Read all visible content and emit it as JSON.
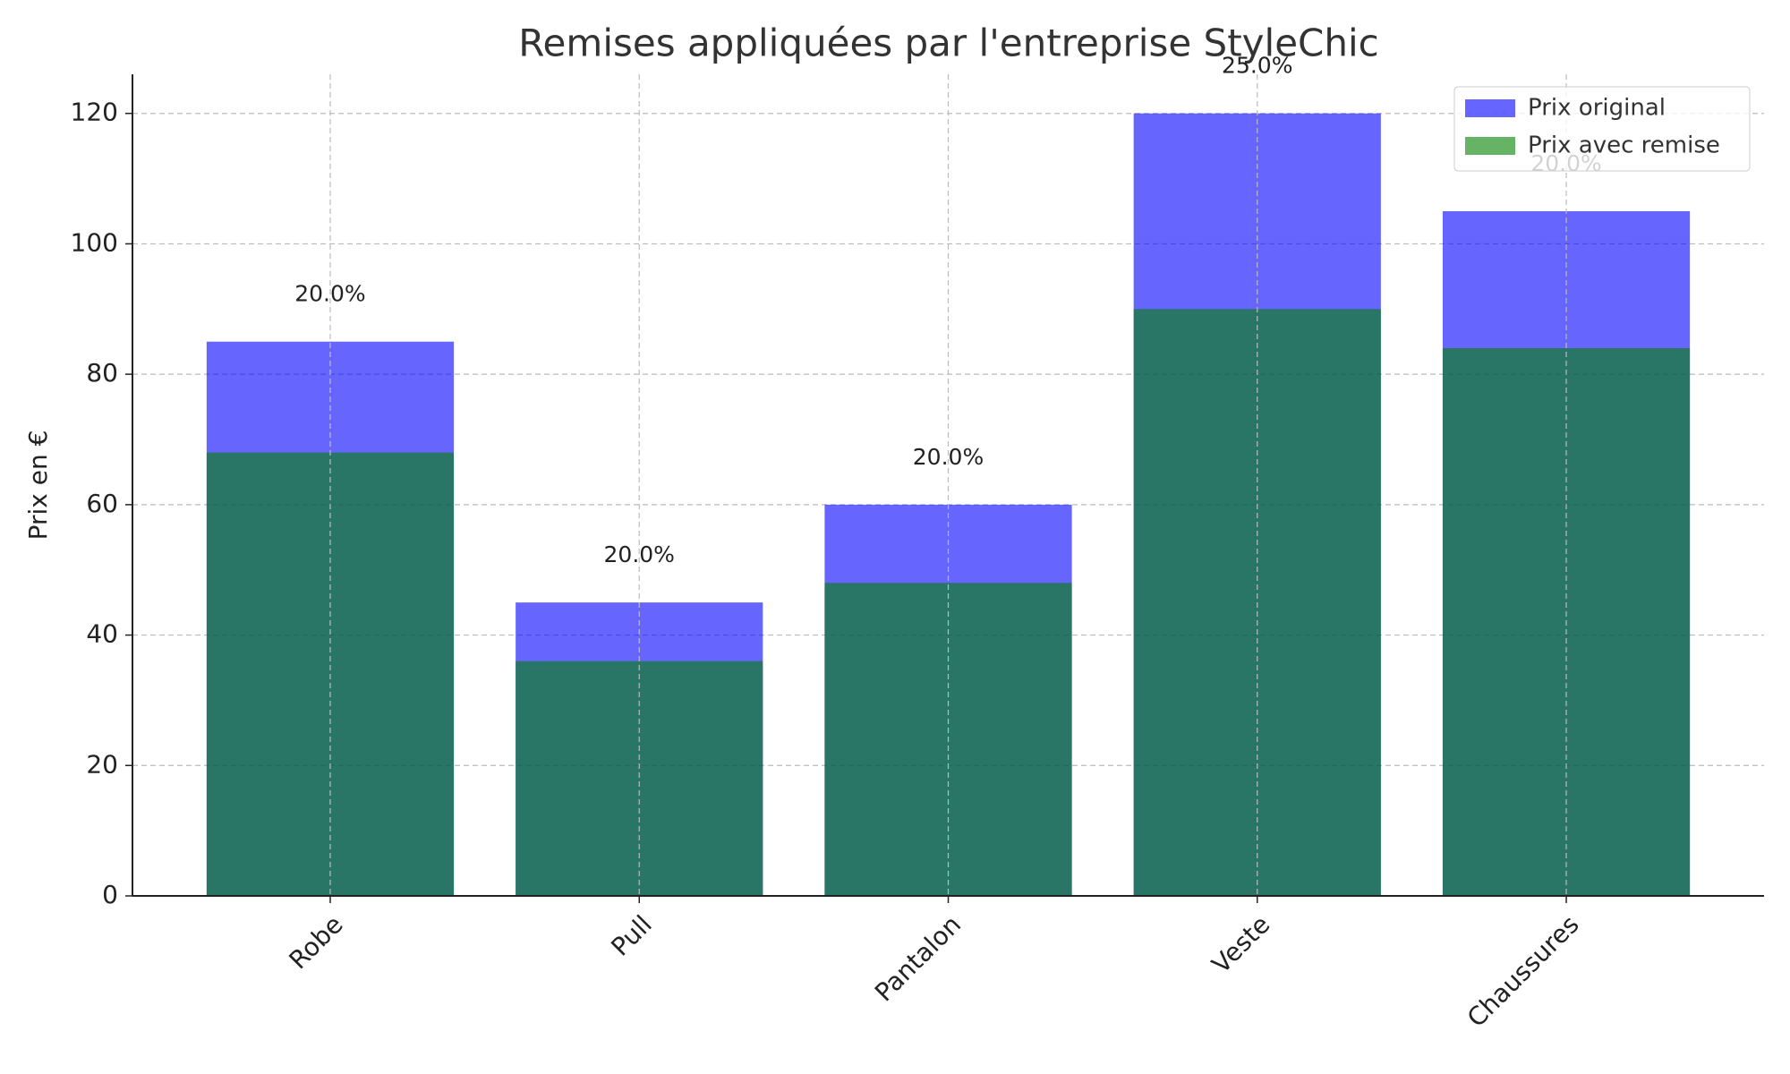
{
  "chart_data": {
    "type": "bar",
    "title": "Remises appliquées par l'entreprise StyleChic",
    "ylabel": "Prix en €",
    "categories": [
      "Robe",
      "Pull",
      "Pantalon",
      "Veste",
      "Chaussures"
    ],
    "series": [
      {
        "name": "Prix original",
        "color": "blue",
        "values": [
          85,
          45,
          60,
          120,
          105
        ]
      },
      {
        "name": "Prix avec remise",
        "color": "green",
        "values": [
          68,
          36,
          48,
          90,
          84
        ]
      }
    ],
    "annotations": [
      "20.0%",
      "20.0%",
      "20.0%",
      "25.0%",
      "20.0%"
    ],
    "alpha": 0.6,
    "ylim": [
      0,
      126
    ],
    "yticks": [
      0,
      20,
      40,
      60,
      80,
      100,
      120
    ],
    "grid": true,
    "legend": "upper right"
  }
}
